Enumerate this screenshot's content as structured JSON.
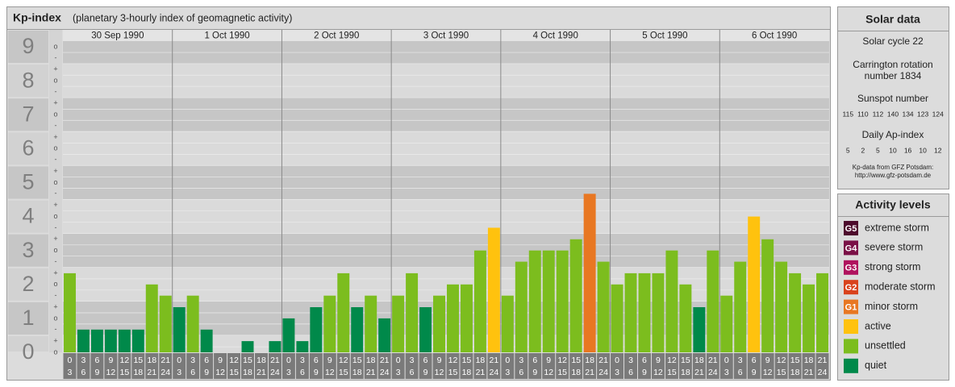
{
  "header": {
    "title": "Kp-index",
    "subtitle": "(planetary 3-hourly index of geomagnetic activity)"
  },
  "chart_data": {
    "type": "bar",
    "ylim": [
      0,
      9.5
    ],
    "yticks": [
      0,
      1,
      2,
      3,
      4,
      5,
      6,
      7,
      8,
      9
    ],
    "y_minor_ticks": [
      {
        "value": 0,
        "label": "o"
      },
      {
        "value": 0.33,
        "label": "+"
      },
      {
        "value": 0.67,
        "label": "-"
      },
      {
        "value": 1,
        "label": "o"
      },
      {
        "value": 1.33,
        "label": "+"
      },
      {
        "value": 1.67,
        "label": "-"
      },
      {
        "value": 2,
        "label": "o"
      },
      {
        "value": 2.33,
        "label": "+"
      },
      {
        "value": 2.67,
        "label": "-"
      },
      {
        "value": 3,
        "label": "o"
      },
      {
        "value": 3.33,
        "label": "+"
      },
      {
        "value": 3.67,
        "label": "-"
      },
      {
        "value": 4,
        "label": "o"
      },
      {
        "value": 4.33,
        "label": "+"
      },
      {
        "value": 4.67,
        "label": "-"
      },
      {
        "value": 5,
        "label": "o"
      },
      {
        "value": 5.33,
        "label": "+"
      },
      {
        "value": 5.67,
        "label": "-"
      },
      {
        "value": 6,
        "label": "o"
      },
      {
        "value": 6.33,
        "label": "+"
      },
      {
        "value": 6.67,
        "label": "-"
      },
      {
        "value": 7,
        "label": "o"
      },
      {
        "value": 7.33,
        "label": "+"
      },
      {
        "value": 7.67,
        "label": "-"
      },
      {
        "value": 8,
        "label": "o"
      },
      {
        "value": 8.33,
        "label": "+"
      },
      {
        "value": 8.67,
        "label": "-"
      },
      {
        "value": 9,
        "label": "o"
      }
    ],
    "hours_start": [
      "0",
      "3",
      "6",
      "9",
      "12",
      "15",
      "18",
      "21"
    ],
    "hours_end": [
      "3",
      "6",
      "9",
      "12",
      "15",
      "18",
      "21",
      "24"
    ],
    "series": [
      {
        "name": "30 Sep 1990",
        "values": [
          2.33,
          0.67,
          0.67,
          0.67,
          0.67,
          0.67,
          2,
          1.67
        ],
        "colors": [
          "#7cbd1e",
          "#00894a",
          "#00894a",
          "#00894a",
          "#00894a",
          "#00894a",
          "#7cbd1e",
          "#7cbd1e"
        ]
      },
      {
        "name": "1 Oct 1990",
        "values": [
          1.33,
          1.67,
          0.67,
          0,
          0,
          0.33,
          0,
          0.33
        ],
        "colors": [
          "#00894a",
          "#7cbd1e",
          "#00894a",
          "#00894a",
          "#00894a",
          "#00894a",
          "#00894a",
          "#00894a"
        ]
      },
      {
        "name": "2 Oct 1990",
        "values": [
          1,
          0.33,
          1.33,
          1.67,
          2.33,
          1.33,
          1.67,
          1
        ],
        "colors": [
          "#00894a",
          "#00894a",
          "#00894a",
          "#7cbd1e",
          "#7cbd1e",
          "#00894a",
          "#7cbd1e",
          "#00894a"
        ]
      },
      {
        "name": "3 Oct 1990",
        "values": [
          1.67,
          2.33,
          1.33,
          1.67,
          2,
          2,
          3,
          3.67
        ],
        "colors": [
          "#7cbd1e",
          "#7cbd1e",
          "#00894a",
          "#7cbd1e",
          "#7cbd1e",
          "#7cbd1e",
          "#7cbd1e",
          "#ffc20e"
        ]
      },
      {
        "name": "4 Oct 1990",
        "values": [
          1.67,
          2.67,
          3,
          3,
          3,
          3.33,
          4.67,
          2.67
        ],
        "colors": [
          "#7cbd1e",
          "#7cbd1e",
          "#7cbd1e",
          "#7cbd1e",
          "#7cbd1e",
          "#7cbd1e",
          "#e87722",
          "#7cbd1e"
        ]
      },
      {
        "name": "5 Oct 1990",
        "values": [
          2,
          2.33,
          2.33,
          2.33,
          3,
          2,
          1.33,
          3
        ],
        "colors": [
          "#7cbd1e",
          "#7cbd1e",
          "#7cbd1e",
          "#7cbd1e",
          "#7cbd1e",
          "#7cbd1e",
          "#00894a",
          "#7cbd1e"
        ]
      },
      {
        "name": "6 Oct 1990",
        "values": [
          1.67,
          2.67,
          4,
          3.33,
          2.67,
          2.33,
          2,
          2.33
        ],
        "colors": [
          "#7cbd1e",
          "#7cbd1e",
          "#ffc20e",
          "#7cbd1e",
          "#7cbd1e",
          "#7cbd1e",
          "#7cbd1e",
          "#7cbd1e"
        ]
      }
    ]
  },
  "solar_data": {
    "title": "Solar data",
    "cycle": "Solar cycle 22",
    "carrington": [
      "Carrington rotation",
      "number 1834"
    ],
    "sunspot_title": "Sunspot number",
    "sunspot": [
      115,
      110,
      112,
      140,
      134,
      123,
      124
    ],
    "ap_title": "Daily Ap-index",
    "ap": [
      5,
      2,
      5,
      10,
      16,
      10,
      12
    ],
    "source": [
      "Kp-data from GFZ Potsdam:",
      "http://www.gfz-potsdam.de"
    ]
  },
  "activity_levels": {
    "title": "Activity levels",
    "items": [
      {
        "code": "G5",
        "label": "extreme storm",
        "color": "#4d0a2c"
      },
      {
        "code": "G4",
        "label": "severe storm",
        "color": "#7a1046"
      },
      {
        "code": "G3",
        "label": "strong storm",
        "color": "#b0125e"
      },
      {
        "code": "G2",
        "label": "moderate storm",
        "color": "#d9421c"
      },
      {
        "code": "G1",
        "label": "minor storm",
        "color": "#e87722"
      },
      {
        "label": "active",
        "color": "#ffc20e"
      },
      {
        "label": "unsettled",
        "color": "#7cbd1e"
      },
      {
        "label": "quiet",
        "color": "#00894a"
      }
    ]
  }
}
